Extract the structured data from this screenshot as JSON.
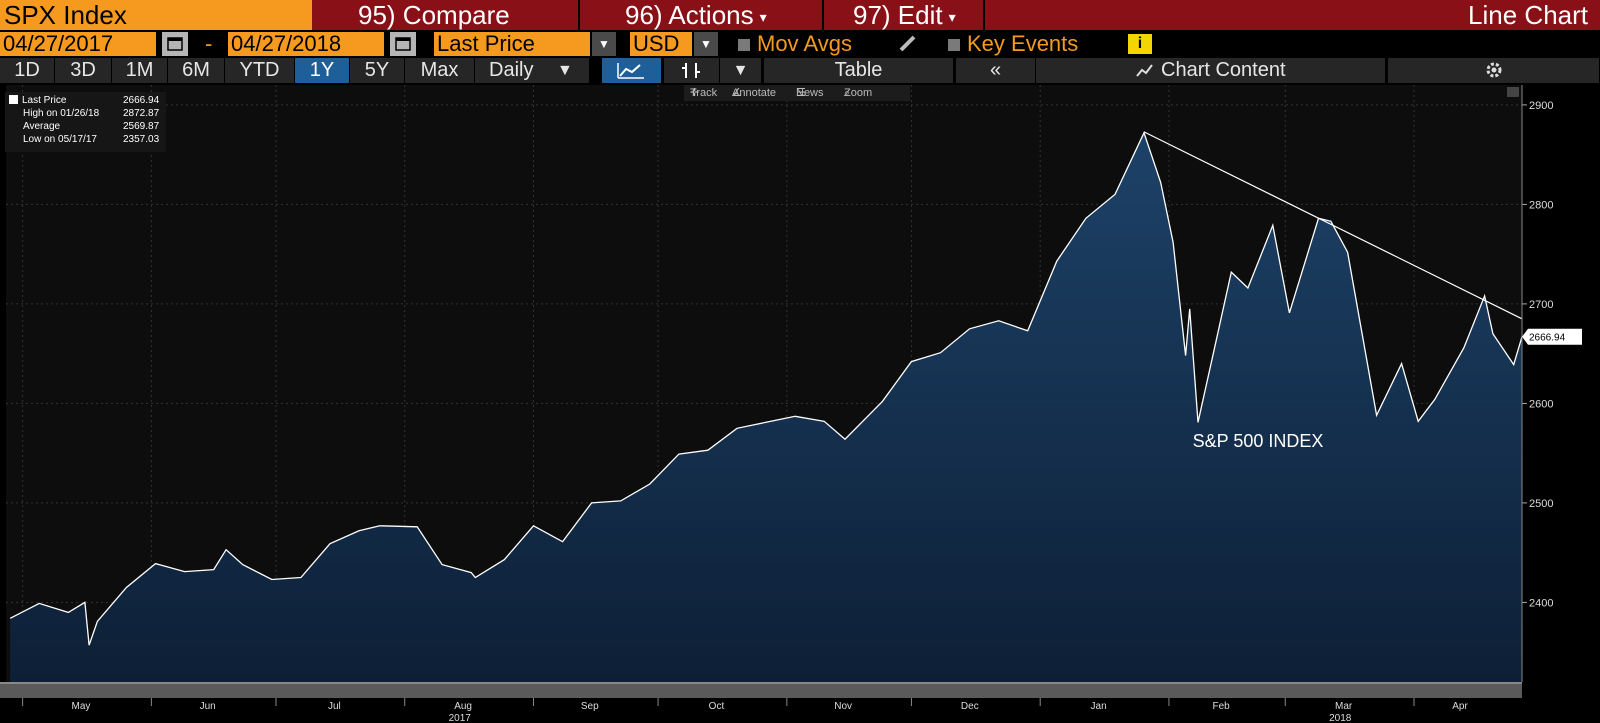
{
  "header": {
    "ticker": "SPX Index",
    "compare": "95) Compare",
    "actions": "96) Actions",
    "edit": "97) Edit",
    "chart_title": "Line Chart"
  },
  "controls": {
    "start_date": "04/27/2017",
    "dash": "-",
    "end_date": "04/27/2018",
    "field": "Last Price",
    "currency": "USD",
    "mov_avgs": "Mov Avgs",
    "key_events": "Key Events",
    "info_glyph": "i"
  },
  "toolbar": {
    "ranges": [
      "1D",
      "3D",
      "1M",
      "6M",
      "YTD",
      "1Y",
      "5Y",
      "Max"
    ],
    "selected_range": "1Y",
    "frequency": "Daily",
    "table": "Table",
    "collapse_glyph": "«",
    "chart_content": "Chart Content",
    "icons": [
      "line-chart-icon",
      "bars-icon",
      "chevron-down-icon",
      "chart-content-icon",
      "gear-icon"
    ]
  },
  "chart_tools": [
    "Track",
    "Annotate",
    "News",
    "Zoom"
  ],
  "legend": [
    {
      "label": "Last Price",
      "value": "2666.94"
    },
    {
      "label": "High on 01/26/18",
      "value": "2872.87"
    },
    {
      "label": "Average",
      "value": "2569.87"
    },
    {
      "label": "Low on 05/17/17",
      "value": "2357.03"
    }
  ],
  "colors": {
    "accent_orange": "#f59a1f",
    "header_red": "#8a1018",
    "area_fill": "#1b3a5f",
    "line": "#ffffff"
  },
  "chart_data": {
    "type": "area",
    "annotation": "S&P 500 INDEX",
    "last_value_label": "2666.94",
    "x": [
      "2017-04-28",
      "2017-05-05",
      "2017-05-12",
      "2017-05-16",
      "2017-05-17",
      "2017-05-19",
      "2017-05-26",
      "2017-06-02",
      "2017-06-09",
      "2017-06-16",
      "2017-06-19",
      "2017-06-23",
      "2017-06-30",
      "2017-07-07",
      "2017-07-14",
      "2017-07-21",
      "2017-07-26",
      "2017-08-04",
      "2017-08-10",
      "2017-08-17",
      "2017-08-18",
      "2017-08-25",
      "2017-09-01",
      "2017-09-08",
      "2017-09-15",
      "2017-09-22",
      "2017-09-29",
      "2017-10-06",
      "2017-10-13",
      "2017-10-20",
      "2017-10-27",
      "2017-11-03",
      "2017-11-10",
      "2017-11-15",
      "2017-11-24",
      "2017-12-01",
      "2017-12-08",
      "2017-12-15",
      "2017-12-22",
      "2017-12-29",
      "2018-01-05",
      "2018-01-12",
      "2018-01-19",
      "2018-01-26",
      "2018-01-30",
      "2018-02-02",
      "2018-02-05",
      "2018-02-06",
      "2018-02-08",
      "2018-02-12",
      "2018-02-16",
      "2018-02-20",
      "2018-02-26",
      "2018-03-02",
      "2018-03-09",
      "2018-03-12",
      "2018-03-16",
      "2018-03-23",
      "2018-03-29",
      "2018-04-02",
      "2018-04-06",
      "2018-04-13",
      "2018-04-18",
      "2018-04-20",
      "2018-04-25",
      "2018-04-27"
    ],
    "y": [
      2384,
      2399,
      2390,
      2400,
      2357,
      2381,
      2415,
      2439,
      2431,
      2433,
      2453,
      2438,
      2423,
      2425,
      2459,
      2472,
      2477,
      2476,
      2438,
      2430,
      2425,
      2443,
      2477,
      2461,
      2500,
      2502,
      2519,
      2549,
      2553,
      2575,
      2581,
      2587,
      2582,
      2564,
      2602,
      2642,
      2651,
      2675,
      2683,
      2673,
      2743,
      2786,
      2810,
      2872,
      2822,
      2762,
      2648,
      2695,
      2581,
      2656,
      2732,
      2716,
      2779,
      2691,
      2786,
      2783,
      2752,
      2588,
      2640,
      2582,
      2604,
      2656,
      2708,
      2670,
      2639,
      2667
    ],
    "ylim": [
      2320,
      2920
    ],
    "yticks": [
      2400,
      2500,
      2600,
      2700,
      2800,
      2900
    ],
    "xlim": [
      "2017-04-27",
      "2018-04-27"
    ],
    "month_labels": [
      "May",
      "Jun",
      "Jul",
      "Aug",
      "Sep",
      "Oct",
      "Nov",
      "Dec",
      "Jan",
      "Feb",
      "Mar",
      "Apr"
    ],
    "year_labels": [
      "2017",
      "2018"
    ],
    "trendline": {
      "x": [
        "2018-01-26",
        "2018-04-27"
      ],
      "y": [
        2872.87,
        2685
      ]
    },
    "grid": true,
    "legend_position": "top-left"
  }
}
